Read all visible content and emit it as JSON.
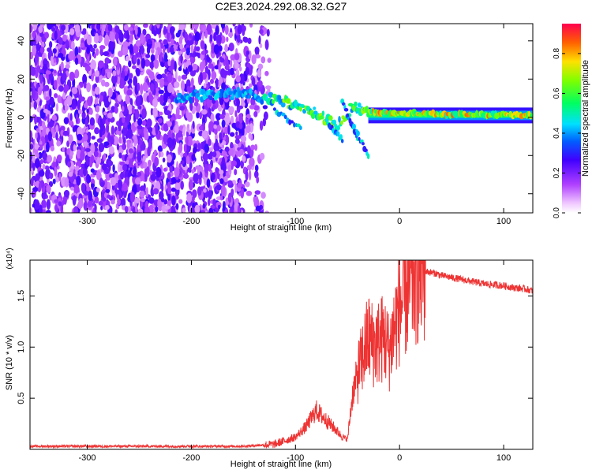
{
  "title": "C2E3.2024.292.08.32.G27",
  "chart_data": [
    {
      "type": "heatmap",
      "xlabel": "Height of straight line (km)",
      "ylabel": "Frequency (Hz)",
      "xlim": [
        -355,
        128
      ],
      "ylim": [
        -50,
        49
      ],
      "x_ticks": [
        -300,
        -200,
        -100,
        0,
        100
      ],
      "y_ticks": [
        -40,
        -20,
        0,
        20,
        40
      ],
      "grid": false,
      "colorbar": {
        "label": "Normalized spectral amplitude",
        "range": [
          0,
          0.95
        ],
        "ticks": [
          0.0,
          0.2,
          0.4,
          0.6,
          0.8
        ],
        "colormap": "rainbow (magenta-purple-blue-cyan-green-yellow-red)"
      },
      "features": [
        {
          "name": "noise region",
          "x_range": [
            -355,
            -125
          ],
          "freq_range": [
            -50,
            49
          ],
          "amplitude": "low-medium (purple speckle)"
        },
        {
          "name": "signal trace",
          "points": [
            [
              -215,
              11
            ],
            [
              -150,
              12
            ],
            [
              -110,
              8
            ],
            [
              -80,
              2
            ],
            [
              -60,
              -5
            ],
            [
              -45,
              6
            ],
            [
              -30,
              3
            ],
            [
              0,
              2
            ],
            [
              128,
              1
            ]
          ],
          "amplitude": "high (cyan-green-red)"
        },
        {
          "name": "steady tone",
          "x_range": [
            -30,
            128
          ],
          "freq": 1,
          "amplitude": "0.45-0.9"
        }
      ]
    },
    {
      "type": "line",
      "xlabel": "Height of straight line (km)",
      "ylabel": "SNR (10 * v/v)",
      "y_multiplier": "(x10⁴)",
      "xlim": [
        -355,
        128
      ],
      "ylim": [
        0,
        1.85
      ],
      "x_ticks": [
        -300,
        -200,
        -100,
        0,
        100
      ],
      "y_ticks": [
        0.5,
        1.0,
        1.5
      ],
      "grid": false,
      "series": [
        {
          "color": "#ee3333",
          "x": [
            -355,
            -300,
            -250,
            -200,
            -150,
            -120,
            -100,
            -90,
            -80,
            -70,
            -60,
            -55,
            -50,
            -45,
            -40,
            -35,
            -30,
            -25,
            -20,
            -15,
            -10,
            -5,
            0,
            5,
            10,
            15,
            20,
            25,
            30,
            35,
            40,
            50,
            60,
            70,
            80,
            90,
            100,
            110,
            120,
            128
          ],
          "y": [
            0.03,
            0.03,
            0.03,
            0.03,
            0.03,
            0.05,
            0.12,
            0.22,
            0.38,
            0.28,
            0.18,
            0.12,
            0.1,
            0.55,
            0.75,
            0.92,
            1.1,
            1.02,
            1.05,
            1.1,
            0.95,
            1.2,
            1.38,
            1.48,
            1.6,
            1.7,
            1.72,
            1.74,
            1.73,
            1.72,
            1.7,
            1.68,
            1.66,
            1.64,
            1.62,
            1.61,
            1.6,
            1.58,
            1.57,
            1.55
          ]
        }
      ]
    }
  ]
}
